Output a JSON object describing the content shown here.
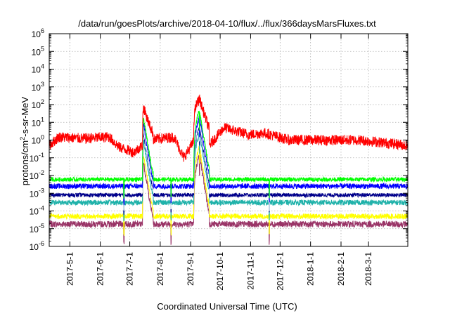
{
  "chart_data": {
    "type": "line",
    "title": "/data/run/goesPlots/archive/2018-04-10/flux/../flux/366daysMarsFluxes.txt",
    "xlabel": "Coordinated Universal Time (UTC)",
    "ylabel_parts": [
      "protons/cm",
      "2",
      "-s-sr-MeV"
    ],
    "x_range": [
      "2017-04-10",
      "2018-04-10"
    ],
    "x_ticks": [
      "2017-5-1",
      "2017-6-1",
      "2017-7-1",
      "2017-8-1",
      "2017-9-1",
      "2017-10-1",
      "2017-11-1",
      "2017-12-1",
      "2018-1-1",
      "2018-2-1",
      "2018-3-1"
    ],
    "y_scale": "log",
    "y_range": [
      1e-06,
      1000000.0
    ],
    "y_ticks": [
      {
        "base": "10",
        "exp": "-6"
      },
      {
        "base": "10",
        "exp": "-5"
      },
      {
        "base": "10",
        "exp": "-4"
      },
      {
        "base": "10",
        "exp": "-3"
      },
      {
        "base": "10",
        "exp": "-2"
      },
      {
        "base": "10",
        "exp": "-1"
      },
      {
        "base": "10",
        "exp": "0"
      },
      {
        "base": "10",
        "exp": "1"
      },
      {
        "base": "10",
        "exp": "2"
      },
      {
        "base": "10",
        "exp": "3"
      },
      {
        "base": "10",
        "exp": "4"
      },
      {
        "base": "10",
        "exp": "5"
      },
      {
        "base": "10",
        "exp": "6"
      }
    ],
    "grid": true,
    "series_order": [
      "plum",
      "yellow",
      "teal",
      "darkblue",
      "white",
      "blue",
      "green",
      "red"
    ],
    "series": [
      {
        "key": "red",
        "color": "#ff0000",
        "baseline": 1.0,
        "noise_dex": 0.3,
        "segments": [
          {
            "x": "2017-04-10",
            "y": 0.5
          },
          {
            "x": "2017-04-20",
            "y": 1.5
          },
          {
            "x": "2017-05-15",
            "y": 1.2
          },
          {
            "x": "2017-06-10",
            "y": 1.5
          },
          {
            "x": "2017-06-20",
            "y": 0.4
          },
          {
            "x": "2017-07-05",
            "y": 0.2
          },
          {
            "x": "2017-07-14",
            "y": 0.5
          },
          {
            "x": "2017-07-20",
            "y": 1.0
          },
          {
            "x": "2017-08-15",
            "y": 1.5
          },
          {
            "x": "2017-08-25",
            "y": 0.1
          },
          {
            "x": "2017-09-05",
            "y": 1.0
          },
          {
            "x": "2017-09-20",
            "y": 0.5
          },
          {
            "x": "2017-10-05",
            "y": 5.0
          },
          {
            "x": "2017-10-30",
            "y": 2.0
          },
          {
            "x": "2017-11-15",
            "y": 2.5
          },
          {
            "x": "2017-12-10",
            "y": 1.0
          },
          {
            "x": "2018-01-10",
            "y": 1.0
          },
          {
            "x": "2018-02-20",
            "y": 1.0
          },
          {
            "x": "2018-04-10",
            "y": 0.5
          }
        ]
      },
      {
        "key": "green",
        "color": "#00ff00",
        "baseline": 0.006,
        "noise_dex": 0.12,
        "segments": []
      },
      {
        "key": "blue",
        "color": "#0000ff",
        "baseline": 0.0025,
        "noise_dex": 0.15,
        "segments": []
      },
      {
        "key": "white",
        "color": "#ffffff",
        "baseline": 0.0012,
        "noise_dex": 0.1,
        "segments": []
      },
      {
        "key": "darkblue",
        "color": "#00008b",
        "baseline": 0.0008,
        "noise_dex": 0.12,
        "segments": []
      },
      {
        "key": "teal",
        "color": "#20b2aa",
        "baseline": 0.0003,
        "noise_dex": 0.15,
        "segments": []
      },
      {
        "key": "yellow",
        "color": "#ffff00",
        "baseline": 5e-05,
        "noise_dex": 0.15,
        "segments": []
      },
      {
        "key": "plum",
        "color": "#993366",
        "baseline": 1.8e-05,
        "noise_dex": 0.18,
        "segments": []
      }
    ],
    "events": [
      {
        "start": "2017-07-14",
        "peak": "2017-07-15",
        "end": "2017-07-25",
        "red_peak": 70,
        "scale": 8
      },
      {
        "start": "2017-09-04",
        "peak": "2017-09-10",
        "end": "2017-09-20",
        "red_peak": 200,
        "scale": 20
      }
    ],
    "dropouts": [
      "2017-06-25",
      "2017-08-12",
      "2017-09-10",
      "2017-11-20"
    ]
  }
}
